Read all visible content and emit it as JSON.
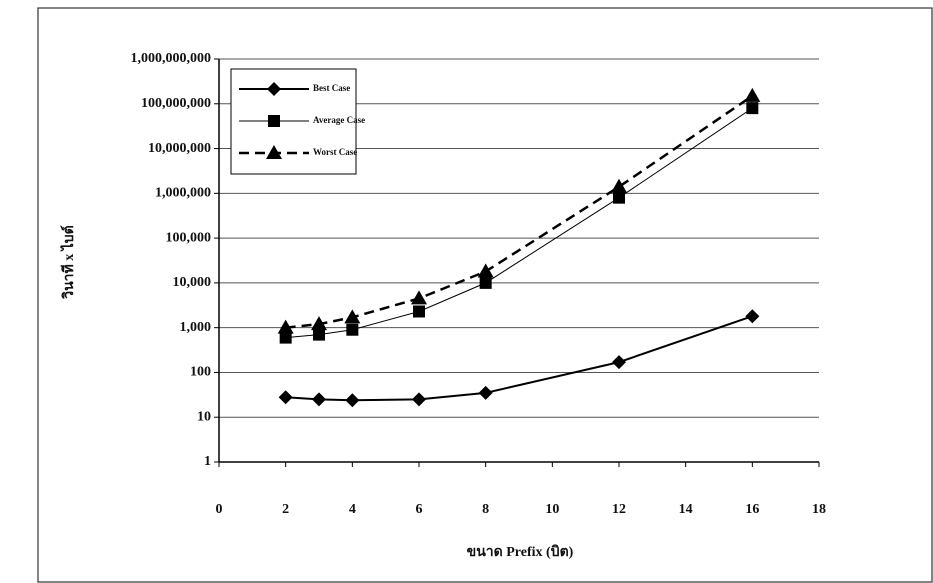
{
  "chart_data": {
    "type": "line",
    "xlabel": "ขนาด Prefix (บิต)",
    "ylabel": "วินาที x ไบต์",
    "x": [
      2,
      3,
      4,
      6,
      8,
      12,
      16
    ],
    "series": [
      {
        "name": "Best Case",
        "color": "#000000",
        "values": [
          28,
          25,
          24,
          25,
          35,
          170,
          1800
        ]
      },
      {
        "name": "Average Case",
        "color": "#000000",
        "values": [
          600,
          700,
          900,
          2300,
          10000,
          800000,
          80000000
        ]
      },
      {
        "name": "Worst Case",
        "color": "#000000",
        "values": [
          1000,
          1200,
          1700,
          4500,
          18000,
          1400000,
          150000000
        ]
      }
    ],
    "xlim": [
      0,
      18
    ],
    "xticks": [
      0,
      2,
      4,
      6,
      8,
      10,
      12,
      14,
      16,
      18
    ],
    "ylim": [
      1,
      1000000000
    ],
    "yticks": [
      1,
      10,
      100,
      {
        "value": 1000,
        "label": "1,000"
      },
      {
        "value": 10000,
        "label": "10,000"
      },
      {
        "value": 100000,
        "label": "100,000"
      },
      {
        "value": 1000000,
        "label": "1,000,000"
      },
      {
        "value": 10000000,
        "label": "10,000,000"
      },
      {
        "value": 100000000,
        "label": "100,000,000"
      },
      {
        "value": 1000000000,
        "label": "1,000,000,000"
      }
    ],
    "ylog": true,
    "grid": true,
    "legend": "upper left"
  }
}
